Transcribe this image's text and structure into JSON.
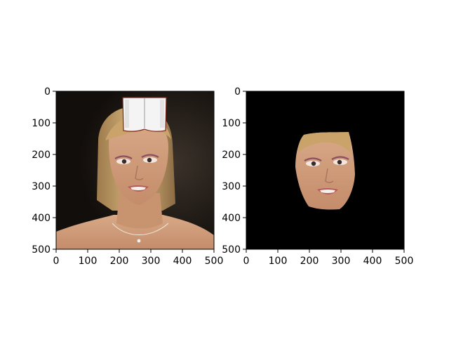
{
  "chart_data": [
    {
      "type": "image",
      "title": "",
      "xlabel": "",
      "ylabel": "",
      "xlim": [
        0,
        500
      ],
      "ylim": [
        500,
        0
      ],
      "xticks": [
        0,
        100,
        200,
        300,
        400,
        500
      ],
      "yticks": [
        0,
        100,
        200,
        300,
        400,
        500
      ],
      "xtick_labels": [
        "0",
        "100",
        "200",
        "300",
        "400",
        "500"
      ],
      "ytick_labels": [
        "0",
        "100",
        "200",
        "300",
        "400",
        "500"
      ],
      "content": {
        "background": "#1c1712",
        "description_icon": "portrait-photo-icon",
        "overlay": {
          "kind": "book-sticker",
          "x_range": [
            210,
            345
          ],
          "y_range": [
            20,
            125
          ],
          "color": "#f2f2f2"
        }
      },
      "grid": false
    },
    {
      "type": "image",
      "title": "",
      "xlabel": "",
      "ylabel": "",
      "xlim": [
        0,
        500
      ],
      "ylim": [
        500,
        0
      ],
      "xticks": [
        0,
        100,
        200,
        300,
        400,
        500
      ],
      "yticks": [
        0,
        100,
        200,
        300,
        400,
        500
      ],
      "xtick_labels": [
        "0",
        "100",
        "200",
        "300",
        "400",
        "500"
      ],
      "ytick_labels": [
        "0",
        "100",
        "200",
        "300",
        "400",
        "500"
      ],
      "content": {
        "background": "#000000",
        "description_icon": "masked-face-icon",
        "face_region": {
          "x_range": [
            155,
            345
          ],
          "y_range": [
            125,
            375
          ],
          "color": "#d4a17e"
        }
      },
      "grid": false
    }
  ],
  "colors": {
    "axis": "#000000",
    "skin": "#d4a17e",
    "skin_shadow": "#b07b5b",
    "hair": "#c9a36a",
    "eye": "#3a2a2a",
    "lip": "#b85a5a",
    "teeth": "#f4f1ea",
    "dark_bg": "#1a1410",
    "book": "#f4f4f4"
  }
}
